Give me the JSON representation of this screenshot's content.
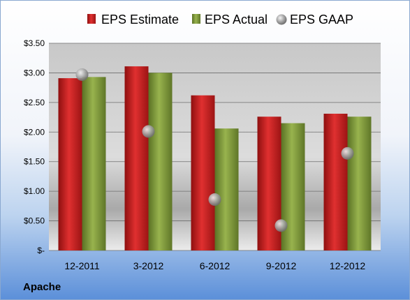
{
  "company": "Apache",
  "colors": {
    "estimate": "#cc1f1f",
    "actual": "#7f9a3a",
    "gaap": "#b5b5b5"
  },
  "chart_data": {
    "type": "bar",
    "categories": [
      "12-2011",
      "3-2012",
      "6-2012",
      "9-2012",
      "12-2012"
    ],
    "series": [
      {
        "name": "EPS Estimate",
        "kind": "bar",
        "values": [
          2.91,
          3.11,
          2.62,
          2.26,
          2.31
        ]
      },
      {
        "name": "EPS Actual",
        "kind": "bar",
        "values": [
          2.93,
          3.0,
          2.06,
          2.15,
          2.26
        ]
      },
      {
        "name": "EPS GAAP",
        "kind": "marker",
        "values": [
          2.97,
          2.01,
          0.86,
          0.42,
          1.64
        ]
      }
    ],
    "y_ticks": [
      "$-",
      "$0.50",
      "$1.00",
      "$1.50",
      "$2.00",
      "$2.50",
      "$3.00",
      "$3.50"
    ],
    "ylim": [
      0,
      3.5
    ],
    "legend_position": "top",
    "grid": true
  }
}
